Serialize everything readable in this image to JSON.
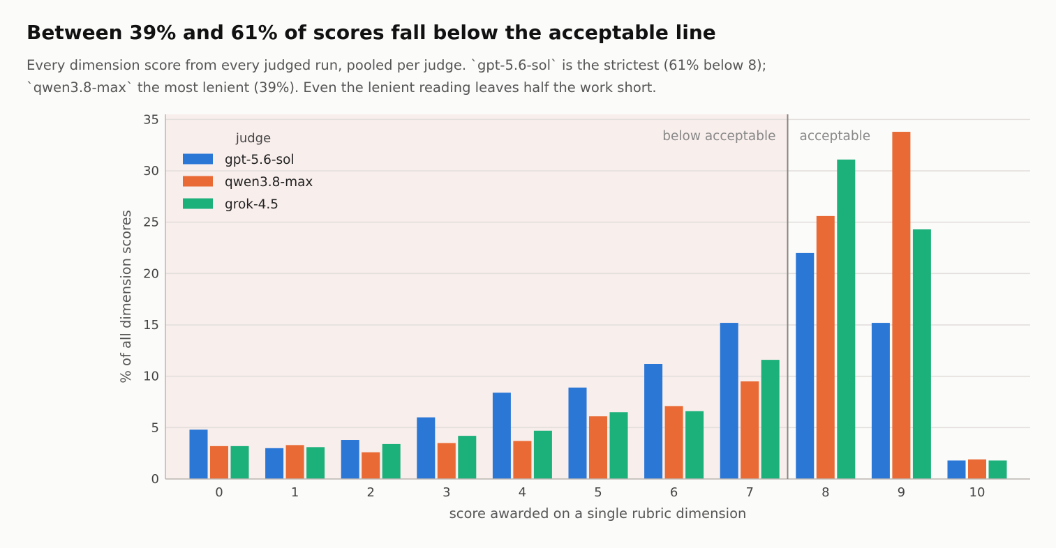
{
  "header": {
    "title": "Between 39% and 61% of scores fall below the acceptable line",
    "subtitle_line1": "Every dimension score from every judged run, pooled per judge. `gpt-5.6-sol` is the strictest (61% below 8);",
    "subtitle_line2": "`qwen3.8-max` the most lenient (39%). Even the lenient reading leaves half the work short."
  },
  "chart_data": {
    "type": "bar",
    "categories": [
      "0",
      "1",
      "2",
      "3",
      "4",
      "5",
      "6",
      "7",
      "8",
      "9",
      "10"
    ],
    "series": [
      {
        "name": "gpt-5.6-sol",
        "color": "#2a77d6",
        "values": [
          4.8,
          3.0,
          3.8,
          6.0,
          8.4,
          8.9,
          11.2,
          15.2,
          22.0,
          15.2,
          1.8
        ]
      },
      {
        "name": "qwen3.8-max",
        "color": "#e96a35",
        "values": [
          3.2,
          3.3,
          2.6,
          3.5,
          3.7,
          6.1,
          7.1,
          9.5,
          25.6,
          33.8,
          1.9
        ]
      },
      {
        "name": "grok-4.5",
        "color": "#1cb07b",
        "values": [
          3.2,
          3.1,
          3.4,
          4.2,
          4.7,
          6.5,
          6.6,
          11.6,
          31.1,
          24.3,
          1.8
        ]
      }
    ],
    "xlabel": "score awarded on a single rubric dimension",
    "ylabel": "% of all dimension scores",
    "ylim": [
      0,
      35.5
    ],
    "yticks": [
      0,
      5,
      10,
      15,
      20,
      25,
      30,
      35
    ],
    "threshold": {
      "value": 7.5,
      "below_label": "below acceptable",
      "above_label": "acceptable"
    },
    "legend": {
      "title": "judge",
      "position": "top-left"
    },
    "grid": true,
    "colors": {
      "below_band": "#f8eeec",
      "threshold_line": "#8a8580",
      "grid": "#e2dedb",
      "axis": "#bbb5b0"
    }
  }
}
